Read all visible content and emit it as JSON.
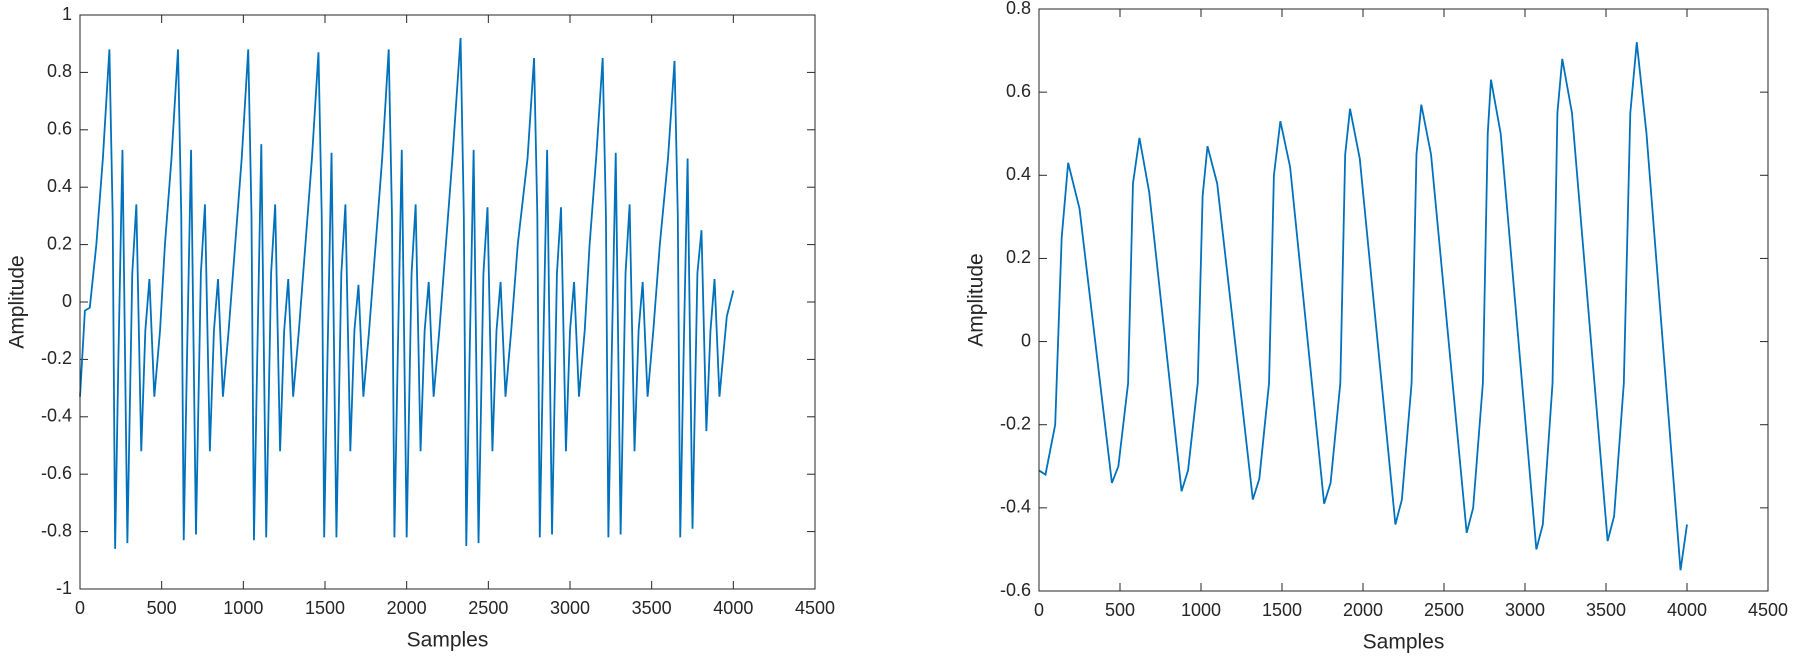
{
  "chart_data": [
    {
      "type": "line",
      "xlabel": "Samples",
      "ylabel": "Amplitude",
      "xlim": [
        0,
        4500
      ],
      "xticks": [
        0,
        500,
        1000,
        1500,
        2000,
        2500,
        3000,
        3500,
        4000,
        4500
      ],
      "ylim": [
        -1,
        1
      ],
      "yticks": [
        -1,
        -0.8,
        -0.6,
        -0.4,
        -0.2,
        0,
        0.2,
        0.4,
        0.6,
        0.8,
        1
      ],
      "series": [
        {
          "color": "#0072bd",
          "x": [
            0,
            30,
            60,
            100,
            140,
            180,
            200,
            215,
            235,
            260,
            290,
            320,
            345,
            375,
            400,
            425,
            455,
            490,
            520,
            560,
            600,
            620,
            635,
            655,
            680,
            710,
            740,
            765,
            795,
            820,
            845,
            875,
            910,
            950,
            990,
            1030,
            1050,
            1065,
            1085,
            1110,
            1140,
            1170,
            1195,
            1225,
            1250,
            1275,
            1305,
            1340,
            1380,
            1420,
            1460,
            1480,
            1495,
            1515,
            1540,
            1570,
            1600,
            1625,
            1655,
            1680,
            1705,
            1735,
            1770,
            1810,
            1850,
            1890,
            1910,
            1925,
            1945,
            1970,
            2000,
            2030,
            2055,
            2085,
            2110,
            2135,
            2165,
            2200,
            2240,
            2280,
            2330,
            2350,
            2365,
            2385,
            2410,
            2440,
            2470,
            2495,
            2525,
            2550,
            2575,
            2605,
            2640,
            2680,
            2740,
            2780,
            2800,
            2815,
            2835,
            2860,
            2890,
            2920,
            2945,
            2975,
            3000,
            3025,
            3055,
            3090,
            3120,
            3160,
            3200,
            3220,
            3235,
            3255,
            3280,
            3310,
            3340,
            3365,
            3395,
            3420,
            3445,
            3475,
            3510,
            3550,
            3600,
            3640,
            3660,
            3675,
            3695,
            3720,
            3750,
            3780,
            3805,
            3835,
            3860,
            3885,
            3915,
            3960,
            4000
          ],
          "values": [
            -0.33,
            -0.03,
            -0.02,
            0.2,
            0.5,
            0.88,
            0.3,
            -0.86,
            -0.2,
            0.53,
            -0.84,
            0.1,
            0.34,
            -0.52,
            -0.1,
            0.08,
            -0.33,
            -0.1,
            0.2,
            0.5,
            0.88,
            0.3,
            -0.83,
            -0.2,
            0.53,
            -0.81,
            0.1,
            0.34,
            -0.52,
            -0.1,
            0.08,
            -0.33,
            -0.1,
            0.2,
            0.5,
            0.88,
            0.3,
            -0.83,
            -0.2,
            0.55,
            -0.82,
            0.1,
            0.34,
            -0.52,
            -0.1,
            0.08,
            -0.33,
            -0.1,
            0.2,
            0.5,
            0.87,
            0.3,
            -0.82,
            -0.2,
            0.52,
            -0.82,
            0.1,
            0.34,
            -0.52,
            -0.1,
            0.06,
            -0.33,
            -0.1,
            0.2,
            0.5,
            0.88,
            0.3,
            -0.82,
            -0.2,
            0.53,
            -0.82,
            0.1,
            0.34,
            -0.52,
            -0.1,
            0.07,
            -0.33,
            -0.1,
            0.2,
            0.5,
            0.92,
            0.3,
            -0.85,
            -0.2,
            0.53,
            -0.84,
            0.1,
            0.33,
            -0.52,
            -0.1,
            0.07,
            -0.33,
            -0.1,
            0.2,
            0.5,
            0.85,
            0.3,
            -0.82,
            -0.2,
            0.53,
            -0.81,
            0.1,
            0.33,
            -0.52,
            -0.1,
            0.07,
            -0.33,
            -0.1,
            0.2,
            0.5,
            0.85,
            0.3,
            -0.82,
            -0.2,
            0.52,
            -0.81,
            0.1,
            0.34,
            -0.52,
            -0.1,
            0.07,
            -0.33,
            -0.1,
            0.2,
            0.5,
            0.84,
            0.3,
            -0.82,
            -0.2,
            0.5,
            -0.79,
            0.1,
            0.25,
            -0.45,
            -0.1,
            0.08,
            -0.33,
            -0.05,
            0.04
          ]
        }
      ]
    },
    {
      "type": "line",
      "xlabel": "Samples",
      "ylabel": "Amplitude",
      "xlim": [
        0,
        4500
      ],
      "xticks": [
        0,
        500,
        1000,
        1500,
        2000,
        2500,
        3000,
        3500,
        4000,
        4500
      ],
      "ylim": [
        -0.6,
        0.8
      ],
      "yticks": [
        -0.6,
        -0.4,
        -0.2,
        0,
        0.2,
        0.4,
        0.6,
        0.8
      ],
      "series": [
        {
          "color": "#0072bd",
          "x": [
            0,
            40,
            100,
            140,
            180,
            250,
            450,
            490,
            550,
            580,
            620,
            680,
            880,
            920,
            980,
            1010,
            1040,
            1100,
            1320,
            1360,
            1420,
            1450,
            1490,
            1550,
            1760,
            1800,
            1860,
            1890,
            1920,
            1980,
            2200,
            2240,
            2300,
            2330,
            2360,
            2420,
            2640,
            2680,
            2740,
            2770,
            2790,
            2850,
            3070,
            3110,
            3170,
            3200,
            3230,
            3290,
            3510,
            3550,
            3610,
            3650,
            3690,
            3750,
            3960,
            4000
          ],
          "values": [
            -0.31,
            -0.32,
            -0.2,
            0.25,
            0.43,
            0.32,
            -0.34,
            -0.3,
            -0.1,
            0.38,
            0.49,
            0.36,
            -0.36,
            -0.31,
            -0.1,
            0.35,
            0.47,
            0.38,
            -0.38,
            -0.33,
            -0.1,
            0.4,
            0.53,
            0.42,
            -0.39,
            -0.34,
            -0.1,
            0.45,
            0.56,
            0.44,
            -0.44,
            -0.38,
            -0.1,
            0.45,
            0.57,
            0.45,
            -0.46,
            -0.4,
            -0.1,
            0.5,
            0.63,
            0.5,
            -0.5,
            -0.44,
            -0.1,
            0.55,
            0.68,
            0.55,
            -0.48,
            -0.42,
            -0.1,
            0.55,
            0.72,
            0.5,
            -0.55,
            -0.44
          ]
        }
      ]
    }
  ]
}
